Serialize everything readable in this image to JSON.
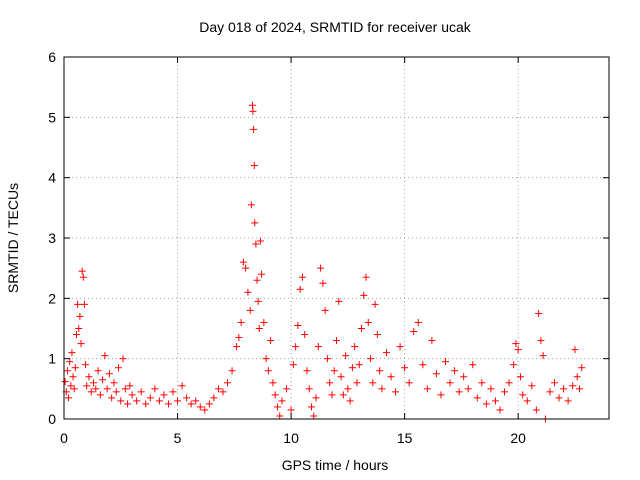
{
  "chart_data": {
    "type": "scatter",
    "title": "Day 018 of 2024, SRMTID for receiver ucak",
    "xlabel": "GPS time / hours",
    "ylabel": "SRMTID / TECUs",
    "xlim": [
      0,
      24
    ],
    "ylim": [
      0,
      6
    ],
    "xticks": [
      0,
      5,
      10,
      15,
      20
    ],
    "yticks": [
      0,
      1,
      2,
      3,
      4,
      5,
      6
    ],
    "xtick_labels": [
      "0",
      "5",
      "10",
      "15",
      "20"
    ],
    "ytick_labels": [
      "0",
      "1",
      "2",
      "3",
      "4",
      "5",
      "6"
    ],
    "grid": true,
    "marker": "+",
    "color": "#ff0000",
    "series": [
      {
        "name": "SRMTID",
        "points": [
          [
            0.05,
            0.62
          ],
          [
            0.1,
            0.45
          ],
          [
            0.15,
            0.8
          ],
          [
            0.2,
            0.35
          ],
          [
            0.25,
            0.95
          ],
          [
            0.3,
            0.55
          ],
          [
            0.35,
            1.1
          ],
          [
            0.4,
            0.7
          ],
          [
            0.45,
            0.5
          ],
          [
            0.5,
            0.85
          ],
          [
            0.55,
            1.4
          ],
          [
            0.6,
            1.9
          ],
          [
            0.65,
            1.5
          ],
          [
            0.7,
            1.7
          ],
          [
            0.75,
            1.25
          ],
          [
            0.8,
            2.45
          ],
          [
            0.85,
            2.35
          ],
          [
            0.9,
            1.9
          ],
          [
            0.95,
            0.9
          ],
          [
            1.0,
            0.55
          ],
          [
            1.1,
            0.7
          ],
          [
            1.2,
            0.45
          ],
          [
            1.3,
            0.6
          ],
          [
            1.4,
            0.5
          ],
          [
            1.5,
            0.8
          ],
          [
            1.6,
            0.4
          ],
          [
            1.7,
            0.65
          ],
          [
            1.8,
            1.05
          ],
          [
            1.9,
            0.5
          ],
          [
            2.0,
            0.75
          ],
          [
            2.1,
            0.35
          ],
          [
            2.2,
            0.6
          ],
          [
            2.3,
            0.45
          ],
          [
            2.4,
            0.85
          ],
          [
            2.5,
            0.3
          ],
          [
            2.6,
            1.0
          ],
          [
            2.7,
            0.5
          ],
          [
            2.8,
            0.25
          ],
          [
            2.9,
            0.55
          ],
          [
            3.0,
            0.4
          ],
          [
            3.2,
            0.3
          ],
          [
            3.4,
            0.45
          ],
          [
            3.6,
            0.25
          ],
          [
            3.8,
            0.35
          ],
          [
            4.0,
            0.5
          ],
          [
            4.2,
            0.3
          ],
          [
            4.4,
            0.4
          ],
          [
            4.6,
            0.25
          ],
          [
            4.8,
            0.45
          ],
          [
            5.0,
            0.3
          ],
          [
            5.2,
            0.55
          ],
          [
            5.4,
            0.35
          ],
          [
            5.6,
            0.25
          ],
          [
            5.8,
            0.3
          ],
          [
            6.0,
            0.2
          ],
          [
            6.2,
            0.15
          ],
          [
            6.4,
            0.25
          ],
          [
            6.6,
            0.35
          ],
          [
            6.8,
            0.5
          ],
          [
            7.0,
            0.45
          ],
          [
            7.2,
            0.6
          ],
          [
            7.4,
            0.8
          ],
          [
            7.6,
            1.2
          ],
          [
            7.7,
            1.35
          ],
          [
            7.8,
            1.6
          ],
          [
            7.9,
            2.6
          ],
          [
            8.0,
            2.5
          ],
          [
            8.1,
            2.1
          ],
          [
            8.2,
            1.8
          ],
          [
            8.25,
            3.55
          ],
          [
            8.3,
            5.2
          ],
          [
            8.32,
            5.1
          ],
          [
            8.35,
            4.8
          ],
          [
            8.38,
            4.2
          ],
          [
            8.4,
            3.25
          ],
          [
            8.45,
            2.9
          ],
          [
            8.5,
            2.3
          ],
          [
            8.55,
            1.95
          ],
          [
            8.6,
            1.5
          ],
          [
            8.65,
            2.95
          ],
          [
            8.7,
            2.4
          ],
          [
            8.8,
            1.6
          ],
          [
            8.9,
            1.0
          ],
          [
            9.0,
            0.8
          ],
          [
            9.1,
            1.3
          ],
          [
            9.2,
            0.6
          ],
          [
            9.3,
            0.4
          ],
          [
            9.4,
            0.2
          ],
          [
            9.5,
            0.05
          ],
          [
            9.6,
            0.3
          ],
          [
            9.8,
            0.5
          ],
          [
            10.0,
            0.15
          ],
          [
            10.1,
            0.9
          ],
          [
            10.2,
            1.2
          ],
          [
            10.3,
            1.55
          ],
          [
            10.4,
            2.15
          ],
          [
            10.5,
            2.35
          ],
          [
            10.6,
            1.4
          ],
          [
            10.7,
            0.8
          ],
          [
            10.8,
            0.5
          ],
          [
            10.9,
            0.2
          ],
          [
            11.0,
            0.05
          ],
          [
            11.1,
            0.35
          ],
          [
            11.2,
            1.2
          ],
          [
            11.3,
            2.5
          ],
          [
            11.4,
            2.25
          ],
          [
            11.5,
            1.8
          ],
          [
            11.6,
            1.0
          ],
          [
            11.7,
            0.6
          ],
          [
            11.8,
            0.4
          ],
          [
            11.9,
            0.8
          ],
          [
            12.0,
            1.3
          ],
          [
            12.1,
            1.95
          ],
          [
            12.2,
            0.7
          ],
          [
            12.3,
            0.4
          ],
          [
            12.4,
            1.05
          ],
          [
            12.5,
            0.5
          ],
          [
            12.6,
            0.3
          ],
          [
            12.7,
            0.85
          ],
          [
            12.8,
            1.2
          ],
          [
            12.9,
            0.6
          ],
          [
            13.0,
            0.9
          ],
          [
            13.1,
            1.5
          ],
          [
            13.2,
            2.05
          ],
          [
            13.3,
            2.35
          ],
          [
            13.4,
            1.6
          ],
          [
            13.5,
            1.0
          ],
          [
            13.6,
            0.6
          ],
          [
            13.7,
            1.9
          ],
          [
            13.8,
            1.4
          ],
          [
            13.9,
            0.8
          ],
          [
            14.0,
            0.5
          ],
          [
            14.2,
            1.1
          ],
          [
            14.4,
            0.7
          ],
          [
            14.6,
            0.45
          ],
          [
            14.8,
            1.2
          ],
          [
            15.0,
            0.85
          ],
          [
            15.2,
            0.6
          ],
          [
            15.4,
            1.45
          ],
          [
            15.6,
            1.6
          ],
          [
            15.8,
            0.9
          ],
          [
            16.0,
            0.5
          ],
          [
            16.2,
            1.3
          ],
          [
            16.4,
            0.75
          ],
          [
            16.6,
            0.4
          ],
          [
            16.8,
            0.95
          ],
          [
            17.0,
            0.6
          ],
          [
            17.2,
            0.8
          ],
          [
            17.4,
            0.45
          ],
          [
            17.6,
            0.7
          ],
          [
            17.8,
            0.5
          ],
          [
            18.0,
            0.9
          ],
          [
            18.2,
            0.35
          ],
          [
            18.4,
            0.6
          ],
          [
            18.6,
            0.25
          ],
          [
            18.8,
            0.5
          ],
          [
            19.0,
            0.3
          ],
          [
            19.2,
            0.15
          ],
          [
            19.4,
            0.45
          ],
          [
            19.6,
            0.6
          ],
          [
            19.8,
            0.9
          ],
          [
            19.9,
            1.25
          ],
          [
            20.0,
            1.15
          ],
          [
            20.1,
            0.7
          ],
          [
            20.2,
            0.4
          ],
          [
            20.4,
            0.3
          ],
          [
            20.6,
            0.55
          ],
          [
            20.8,
            0.15
          ],
          [
            20.9,
            1.75
          ],
          [
            21.0,
            1.3
          ],
          [
            21.1,
            1.05
          ],
          [
            21.2,
            0.0
          ],
          [
            21.4,
            0.45
          ],
          [
            21.6,
            0.6
          ],
          [
            21.8,
            0.35
          ],
          [
            22.0,
            0.5
          ],
          [
            22.2,
            0.3
          ],
          [
            22.4,
            0.55
          ],
          [
            22.5,
            1.15
          ],
          [
            22.6,
            0.7
          ],
          [
            22.7,
            0.5
          ],
          [
            22.8,
            0.85
          ]
        ]
      }
    ]
  }
}
